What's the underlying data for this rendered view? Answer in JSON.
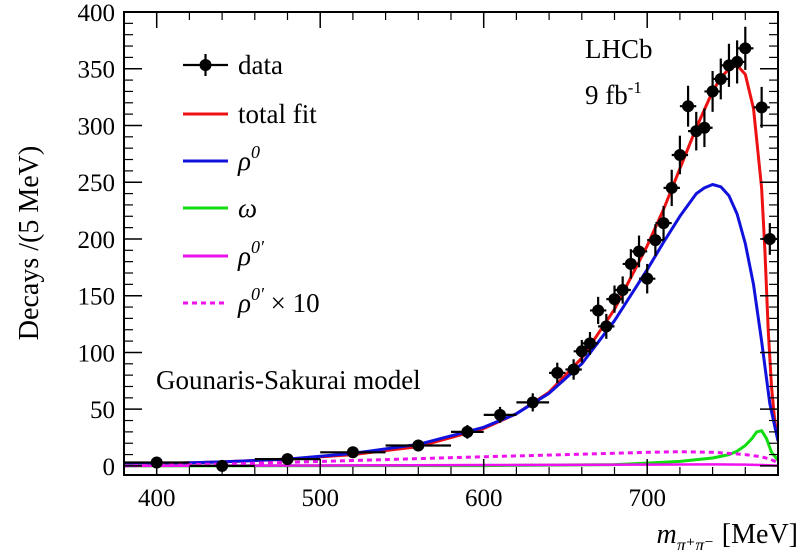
{
  "chart_data": {
    "type": "scatter",
    "xlabel_main": "m",
    "xlabel_sub": "π⁺π⁻",
    "xlabel_unit": "[MeV]",
    "ylabel": "Decays /(5 MeV)",
    "xlim": [
      380,
      780
    ],
    "ylim": [
      -8,
      400
    ],
    "x_ticks": [
      400,
      500,
      600,
      700
    ],
    "y_ticks": [
      0,
      50,
      100,
      150,
      200,
      250,
      300,
      350,
      400
    ],
    "x_tick_labels": [
      "400",
      "500",
      "600",
      "700"
    ],
    "y_tick_labels": [
      "0",
      "50",
      "100",
      "150",
      "200",
      "250",
      "300",
      "350",
      "400"
    ],
    "annotations": {
      "experiment": "LHCb",
      "lumi_value": "9 fb",
      "lumi_exp": "-1",
      "model": "Gounaris-Sakurai model"
    },
    "legend": [
      {
        "key": "data",
        "symbol": "marker",
        "label": "data",
        "color": "#000000"
      },
      {
        "key": "total",
        "symbol": "line",
        "label": "total fit",
        "color": "#ee1111"
      },
      {
        "key": "rho",
        "symbol": "line",
        "label": "ρ",
        "sup": "0",
        "color": "#1111dd"
      },
      {
        "key": "omega",
        "symbol": "line",
        "label": "ω",
        "color": "#11dd11"
      },
      {
        "key": "rhoprime",
        "symbol": "line",
        "label": "ρ",
        "sup": "0′",
        "color": "#ee11ee"
      },
      {
        "key": "rhoprime10",
        "symbol": "dashed",
        "label": "ρ",
        "sup": "0′",
        "suffix": " × 10",
        "color": "#ee11ee"
      }
    ],
    "data_points": [
      {
        "x": 400,
        "y": 3,
        "xerr": 20,
        "yerr": 2
      },
      {
        "x": 440,
        "y": 0,
        "xerr": 20,
        "yerr": 1
      },
      {
        "x": 480,
        "y": 6,
        "xerr": 20,
        "yerr": 3
      },
      {
        "x": 520,
        "y": 12,
        "xerr": 20,
        "yerr": 4
      },
      {
        "x": 560,
        "y": 18,
        "xerr": 20,
        "yerr": 5
      },
      {
        "x": 590,
        "y": 30,
        "xerr": 10,
        "yerr": 6
      },
      {
        "x": 610,
        "y": 45,
        "xerr": 10,
        "yerr": 7
      },
      {
        "x": 630,
        "y": 56,
        "xerr": 10,
        "yerr": 8
      },
      {
        "x": 645,
        "y": 82,
        "xerr": 5,
        "yerr": 9
      },
      {
        "x": 655,
        "y": 85,
        "xerr": 5,
        "yerr": 9
      },
      {
        "x": 660,
        "y": 101,
        "xerr": 5,
        "yerr": 10
      },
      {
        "x": 665,
        "y": 108,
        "xerr": 5,
        "yerr": 10
      },
      {
        "x": 670,
        "y": 137,
        "xerr": 5,
        "yerr": 12
      },
      {
        "x": 675,
        "y": 123,
        "xerr": 5,
        "yerr": 11
      },
      {
        "x": 680,
        "y": 147,
        "xerr": 5,
        "yerr": 12
      },
      {
        "x": 685,
        "y": 155,
        "xerr": 5,
        "yerr": 12
      },
      {
        "x": 690,
        "y": 178,
        "xerr": 5,
        "yerr": 13
      },
      {
        "x": 695,
        "y": 189,
        "xerr": 5,
        "yerr": 14
      },
      {
        "x": 700,
        "y": 165,
        "xerr": 5,
        "yerr": 13
      },
      {
        "x": 705,
        "y": 199,
        "xerr": 5,
        "yerr": 14
      },
      {
        "x": 710,
        "y": 214,
        "xerr": 5,
        "yerr": 15
      },
      {
        "x": 715,
        "y": 245,
        "xerr": 5,
        "yerr": 16
      },
      {
        "x": 720,
        "y": 274,
        "xerr": 5,
        "yerr": 17
      },
      {
        "x": 725,
        "y": 317,
        "xerr": 5,
        "yerr": 18
      },
      {
        "x": 730,
        "y": 295,
        "xerr": 5,
        "yerr": 17
      },
      {
        "x": 735,
        "y": 298,
        "xerr": 5,
        "yerr": 17
      },
      {
        "x": 740,
        "y": 330,
        "xerr": 5,
        "yerr": 18
      },
      {
        "x": 745,
        "y": 341,
        "xerr": 5,
        "yerr": 18
      },
      {
        "x": 750,
        "y": 353,
        "xerr": 5,
        "yerr": 19
      },
      {
        "x": 755,
        "y": 356,
        "xerr": 5,
        "yerr": 19
      },
      {
        "x": 760,
        "y": 368,
        "xerr": 5,
        "yerr": 19
      },
      {
        "x": 770,
        "y": 316,
        "xerr": 5,
        "yerr": 18
      },
      {
        "x": 775,
        "y": 200,
        "xerr": 5,
        "yerr": 14
      }
    ],
    "series": [
      {
        "key": "total",
        "x": [
          380,
          400,
          440,
          480,
          520,
          560,
          600,
          620,
          640,
          660,
          680,
          700,
          710,
          720,
          730,
          740,
          745,
          750,
          755,
          760,
          765,
          770,
          772,
          774,
          776,
          778,
          780
        ],
        "y": [
          1,
          2,
          3.5,
          6,
          10,
          17,
          33,
          46,
          65,
          95,
          138,
          194,
          226,
          262,
          298,
          330,
          342,
          350,
          353,
          345,
          315,
          245,
          190,
          120,
          70,
          40,
          25
        ]
      },
      {
        "key": "rho",
        "x": [
          380,
          400,
          440,
          480,
          520,
          560,
          600,
          620,
          640,
          660,
          680,
          700,
          710,
          720,
          730,
          735,
          740,
          745,
          750,
          755,
          760,
          765,
          770,
          775,
          780
        ],
        "y": [
          1,
          2,
          3.5,
          6,
          11,
          19,
          34,
          46,
          64,
          90,
          128,
          173,
          197,
          220,
          240,
          245,
          248,
          246,
          238,
          222,
          196,
          160,
          110,
          55,
          22
        ]
      },
      {
        "key": "omega",
        "x": [
          380,
          600,
          680,
          700,
          720,
          740,
          750,
          755,
          760,
          764,
          767,
          770,
          773,
          776,
          780
        ],
        "y": [
          0,
          0.3,
          1.2,
          2.5,
          4,
          7,
          10,
          13,
          18,
          24,
          30,
          31,
          24,
          12,
          5
        ]
      },
      {
        "key": "rhoprime",
        "x": [
          380,
          500,
          600,
          700,
          740,
          760,
          770,
          780
        ],
        "y": [
          0,
          0.4,
          0.8,
          1.2,
          1.3,
          1.2,
          0.8,
          0.3
        ]
      },
      {
        "key": "rhoprime10",
        "x": [
          380,
          450,
          500,
          550,
          600,
          650,
          700,
          720,
          740,
          760,
          770,
          775,
          780
        ],
        "y": [
          0,
          2,
          4,
          6,
          8,
          10,
          12,
          12.5,
          12,
          10,
          8,
          6,
          3
        ]
      }
    ]
  }
}
